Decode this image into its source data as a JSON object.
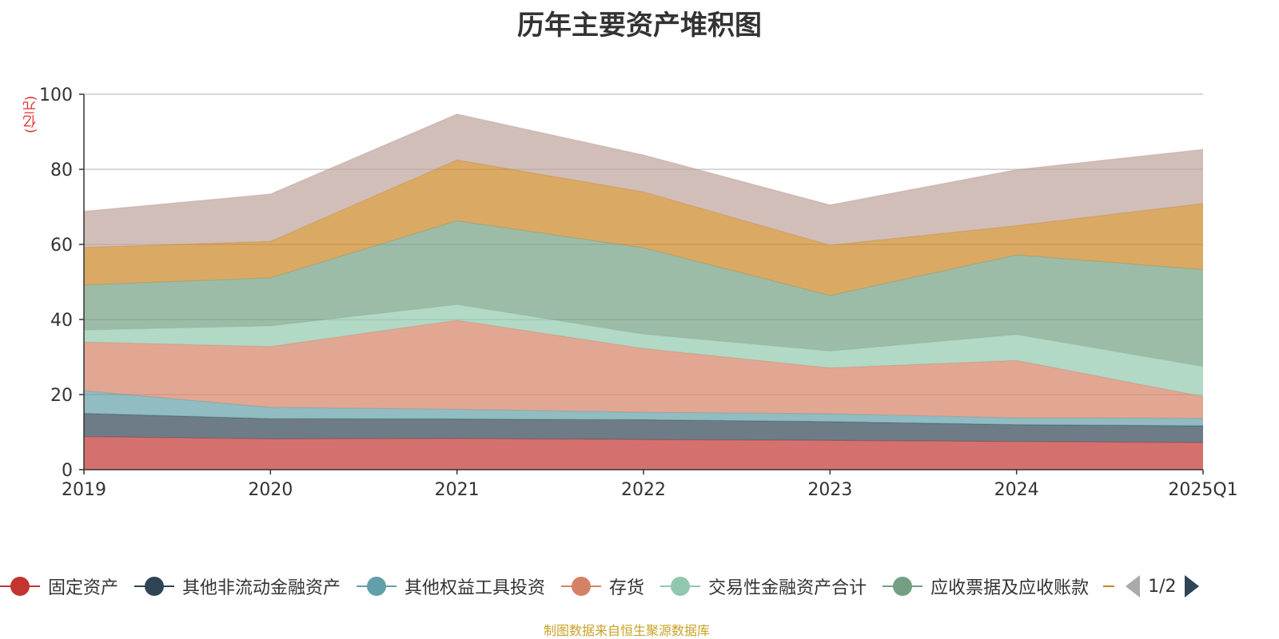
{
  "chart_data": {
    "type": "area",
    "stacked": true,
    "title": "历年主要资产堆积图",
    "unit": "(亿元)",
    "x": [
      "2019",
      "2020",
      "2021",
      "2022",
      "2023",
      "2024",
      "2025Q1"
    ],
    "ylim": [
      0,
      100
    ],
    "yticks": [
      0,
      20,
      40,
      60,
      80,
      100
    ],
    "grid": true,
    "legend_position": "bottom",
    "series": [
      {
        "name": "固定资产",
        "color": "#c23531",
        "values": [
          8.8,
          8.2,
          8.3,
          8.0,
          7.8,
          7.5,
          7.2
        ]
      },
      {
        "name": "其他非流动金融资产",
        "color": "#2f4554",
        "values": [
          6.2,
          5.4,
          5.2,
          5.3,
          5.0,
          4.5,
          4.5
        ]
      },
      {
        "name": "其他权益工具投资",
        "color": "#61a0a8",
        "values": [
          6.0,
          3.0,
          2.6,
          2.0,
          2.1,
          1.8,
          2.0
        ]
      },
      {
        "name": "存货",
        "color": "#d48265",
        "values": [
          13.0,
          16.2,
          23.7,
          17.0,
          12.2,
          15.3,
          5.8
        ]
      },
      {
        "name": "交易性金融资产合计",
        "color": "#91c7ae",
        "values": [
          3.2,
          5.5,
          4.2,
          3.8,
          4.5,
          6.9,
          8.0
        ]
      },
      {
        "name": "应收票据及应收账款",
        "color": "#749f83",
        "values": [
          12.0,
          12.8,
          22.3,
          23.0,
          14.8,
          21.2,
          25.8
        ]
      },
      {
        "name": "",
        "color": "#ca8622",
        "values": [
          10.0,
          9.7,
          16.2,
          14.9,
          13.4,
          7.8,
          17.6
        ]
      },
      {
        "name": "",
        "color": "#bda29a",
        "values": [
          9.6,
          12.6,
          12.2,
          9.8,
          10.7,
          14.9,
          14.4
        ]
      }
    ]
  },
  "legend": {
    "items": [
      {
        "label": "固定资产",
        "color": "#c23531"
      },
      {
        "label": "其他非流动金融资产",
        "color": "#2f4554"
      },
      {
        "label": "其他权益工具投资",
        "color": "#61a0a8"
      },
      {
        "label": "存货",
        "color": "#d48265"
      },
      {
        "label": "交易性金融资产合计",
        "color": "#91c7ae"
      },
      {
        "label": "应收票据及应收账款",
        "color": "#749f83"
      }
    ],
    "truncated_color": "#ca8622",
    "page_indicator": "1/2"
  },
  "source_note": "制图数据来自恒生聚源数据库"
}
